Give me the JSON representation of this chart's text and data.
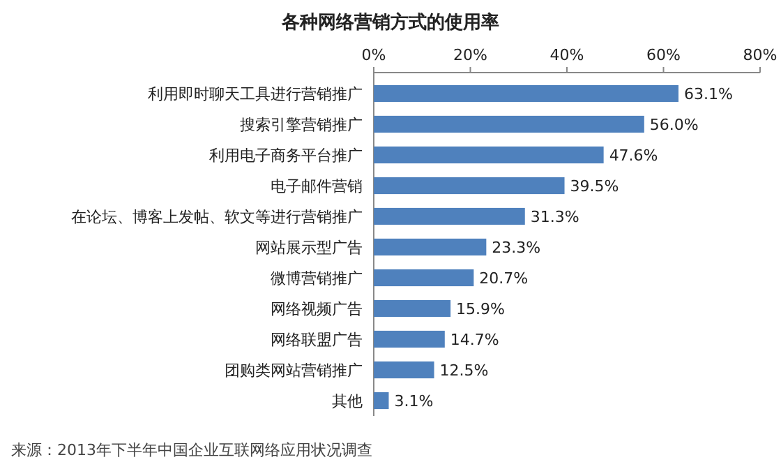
{
  "chart_data": {
    "type": "bar",
    "orientation": "horizontal",
    "title": "各种网络营销方式的使用率",
    "categories": [
      "利用即时聊天工具进行营销推广",
      "搜索引擎营销推广",
      "利用电子商务平台推广",
      "电子邮件营销",
      "在论坛、博客上发帖、软文等进行营销推广",
      "网站展示型广告",
      "微博营销推广",
      "网络视频广告",
      "网络联盟广告",
      "团购类网站营销推广",
      "其他"
    ],
    "values": [
      63.1,
      56.0,
      47.6,
      39.5,
      31.3,
      23.3,
      20.7,
      15.9,
      14.7,
      12.5,
      3.1
    ],
    "value_labels": [
      "63.1%",
      "56.0%",
      "47.6%",
      "39.5%",
      "31.3%",
      "23.3%",
      "20.7%",
      "15.9%",
      "14.7%",
      "12.5%",
      "3.1%"
    ],
    "color": "#4f81bd",
    "xlim": [
      0,
      80
    ],
    "xticks": [
      {
        "value": 0,
        "label": "0%"
      },
      {
        "value": 20,
        "label": "20%"
      },
      {
        "value": 40,
        "label": "40%"
      },
      {
        "value": 60,
        "label": "60%"
      },
      {
        "value": 80,
        "label": "80%"
      }
    ],
    "annotations": [
      "来源：2013年下半年中国企业互联网络应用状况调查"
    ]
  }
}
